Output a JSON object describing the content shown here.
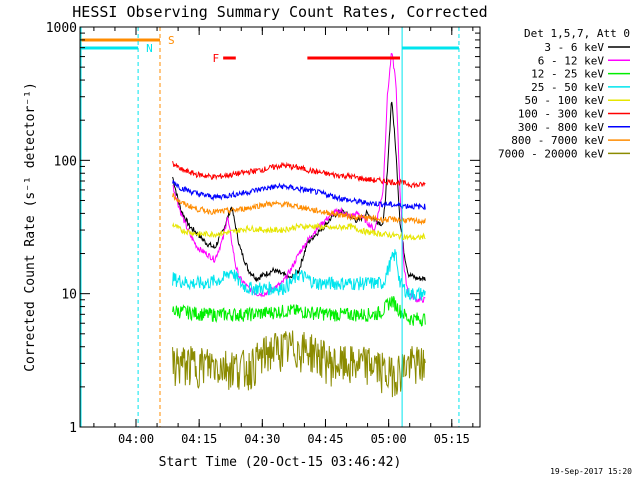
{
  "chart_data": {
    "type": "line",
    "title": "HESSI Observing Summary Count Rates, Corrected",
    "xlabel": "Start Time (20-Oct-15 03:46:42)",
    "ylabel": "Corrected Count Rate (s⁻¹ detector⁻¹)",
    "x_unit": "minutes after 03:46:42 UT",
    "xlim": [
      0,
      95
    ],
    "ylim": [
      1,
      1000
    ],
    "yscale": "log",
    "x_ticks": [
      {
        "minute": 13.3,
        "label": "04:00"
      },
      {
        "minute": 28.3,
        "label": "04:15"
      },
      {
        "minute": 43.3,
        "label": "04:30"
      },
      {
        "minute": 58.3,
        "label": "04:45"
      },
      {
        "minute": 73.3,
        "label": "05:00"
      },
      {
        "minute": 88.3,
        "label": "05:15"
      }
    ],
    "y_ticks": [
      {
        "value": 1,
        "label": "1"
      },
      {
        "value": 10,
        "label": "10"
      },
      {
        "value": 100,
        "label": "100"
      },
      {
        "value": 1000,
        "label": "1000"
      }
    ],
    "legend_title": "Det 1,5,7, Att 0",
    "legend_position": "right, outside plot",
    "series": [
      {
        "name": "3 - 6 keV",
        "color": "#000000",
        "x": [
          22,
          23,
          24,
          26,
          28,
          30,
          32,
          34,
          36,
          38,
          40,
          42,
          44,
          46,
          48,
          50,
          52,
          54,
          56,
          58,
          60,
          62,
          64,
          66,
          68,
          70,
          72,
          73,
          74,
          75,
          76,
          77,
          78,
          80,
          82
        ],
        "y": [
          75,
          55,
          42,
          32,
          28,
          24,
          22,
          30,
          45,
          22,
          15,
          13,
          14,
          15,
          14,
          13,
          15,
          24,
          28,
          32,
          38,
          42,
          38,
          35,
          40,
          36,
          33,
          80,
          300,
          120,
          35,
          20,
          14,
          13,
          13
        ]
      },
      {
        "name": "6 - 12 keV",
        "color": "#ff00ff",
        "x": [
          22,
          24,
          26,
          28,
          30,
          32,
          34,
          35,
          36,
          37,
          38,
          40,
          42,
          44,
          46,
          48,
          50,
          52,
          54,
          56,
          58,
          60,
          62,
          64,
          66,
          68,
          70,
          72,
          73,
          74,
          75,
          76,
          77,
          78,
          80,
          82
        ],
        "y": [
          65,
          40,
          28,
          22,
          20,
          18,
          26,
          38,
          25,
          16,
          13,
          11,
          10,
          10,
          11,
          12,
          15,
          20,
          25,
          30,
          35,
          40,
          42,
          38,
          40,
          35,
          30,
          60,
          300,
          650,
          400,
          60,
          15,
          10,
          9,
          9
        ]
      },
      {
        "name": "12 - 25 keV",
        "color": "#00ee00",
        "x": [
          22,
          30,
          40,
          50,
          60,
          70,
          72,
          74,
          76,
          78,
          80,
          82
        ],
        "y": [
          7.5,
          7.0,
          7.0,
          7.5,
          7.0,
          7.0,
          7.5,
          9.0,
          7.5,
          6.5,
          6.5,
          6.5
        ]
      },
      {
        "name": "25 - 50 keV",
        "color": "#00e5ee",
        "x": [
          22,
          26,
          30,
          34,
          36,
          38,
          40,
          44,
          48,
          50,
          52,
          56,
          60,
          64,
          68,
          70,
          72,
          74,
          75,
          76,
          78,
          80,
          82
        ],
        "y": [
          13,
          12,
          12,
          13,
          15,
          12,
          11,
          11,
          11,
          12,
          14,
          12,
          12,
          12,
          12,
          12,
          12,
          18,
          20,
          12,
          10,
          10,
          10
        ]
      },
      {
        "name": "50 - 100 keV",
        "color": "#e6e600",
        "x": [
          22,
          24,
          28,
          32,
          36,
          40,
          44,
          48,
          52,
          56,
          60,
          64,
          68,
          72,
          76,
          80,
          82
        ],
        "y": [
          33,
          30,
          28,
          28,
          29,
          31,
          30,
          30,
          32,
          32,
          31,
          32,
          29,
          28,
          27,
          26,
          27
        ]
      },
      {
        "name": "100 - 300 keV",
        "color": "#ff0000",
        "x": [
          22,
          24,
          28,
          32,
          36,
          40,
          44,
          48,
          52,
          56,
          60,
          64,
          68,
          72,
          76,
          80,
          82
        ],
        "y": [
          95,
          85,
          78,
          75,
          78,
          82,
          86,
          92,
          88,
          82,
          78,
          76,
          72,
          70,
          68,
          65,
          66
        ]
      },
      {
        "name": "300 - 800 keV",
        "color": "#0000ff",
        "x": [
          22,
          24,
          28,
          32,
          36,
          40,
          44,
          48,
          52,
          56,
          60,
          64,
          68,
          72,
          76,
          80,
          82
        ],
        "y": [
          70,
          62,
          56,
          53,
          55,
          58,
          62,
          64,
          61,
          58,
          54,
          50,
          48,
          47,
          46,
          45,
          45
        ]
      },
      {
        "name": "800 - 7000 keV",
        "color": "#ff8c00",
        "x": [
          22,
          24,
          28,
          32,
          36,
          40,
          44,
          48,
          52,
          56,
          60,
          64,
          68,
          72,
          76,
          80,
          82
        ],
        "y": [
          55,
          48,
          43,
          41,
          42,
          44,
          47,
          47,
          45,
          42,
          40,
          38,
          37,
          36,
          36,
          35,
          35
        ]
      },
      {
        "name": "7000 - 20000 keV",
        "color": "#8b8b00",
        "x": [
          22,
          30,
          40,
          45,
          50,
          55,
          60,
          65,
          70,
          73,
          75,
          78,
          80,
          82
        ],
        "y": [
          3.0,
          3.0,
          2.8,
          3.8,
          4.0,
          3.8,
          3.0,
          3.0,
          3.0,
          2.5,
          2.6,
          3.0,
          3.0,
          3.0
        ]
      }
    ],
    "flags": [
      {
        "label": "S",
        "color": "#ff8c00",
        "x_start": 0,
        "x_end": 19,
        "line_style": "dashed",
        "line_x": 19
      },
      {
        "label": "N",
        "color": "#00e5ee",
        "x_start": 0,
        "x_end": 13.8,
        "line_style": "dashed",
        "line_x": 13.8
      },
      {
        "label": "F",
        "color": "#ff0000",
        "x_start": 34,
        "x_end": 37
      },
      {
        "label": "",
        "color": "#ff0000",
        "x_start": 54,
        "x_end": 76
      },
      {
        "label": "",
        "color": "#00e5ee",
        "x_start": 76.5,
        "x_end": 90,
        "line_style": "solid",
        "line_x": 76.5,
        "dashed_x": 90
      }
    ],
    "grid": false,
    "footer_date": "19-Sep-2017 15:20"
  }
}
